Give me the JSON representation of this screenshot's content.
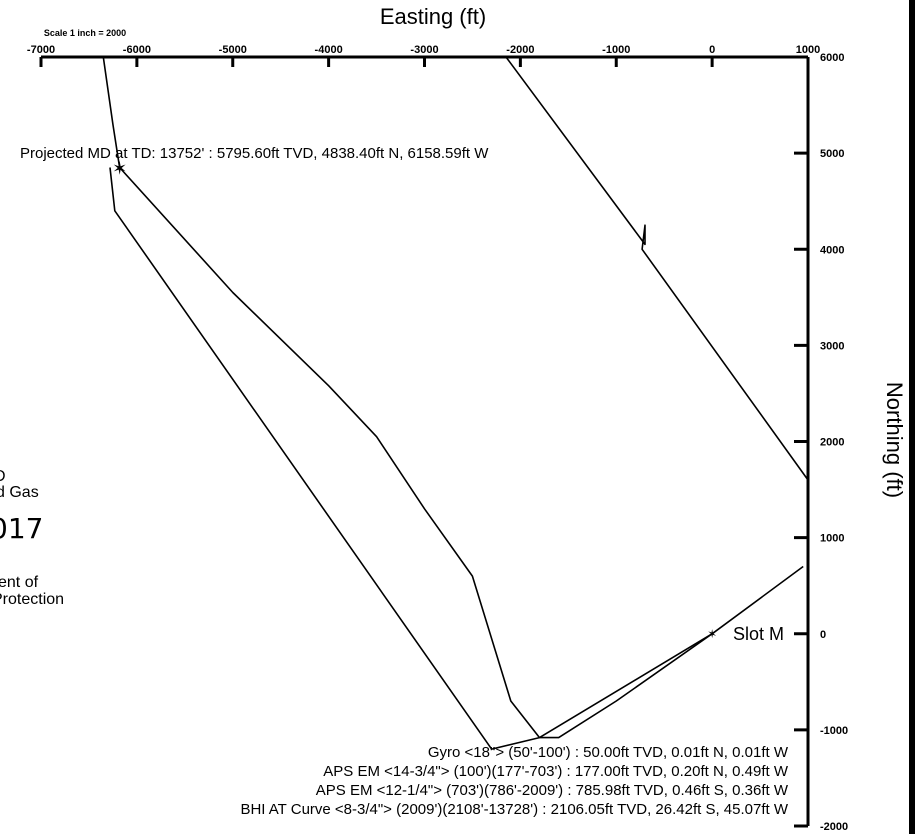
{
  "chart_data": {
    "type": "line",
    "title": "",
    "scale_note": "Scale 1 inch = 2000",
    "xlabel": "Easting (ft)",
    "ylabel": "Northing (ft)",
    "xlim": [
      -7000,
      1000
    ],
    "ylim": [
      -2000,
      6000
    ],
    "x_ticks": [
      -7000,
      -6000,
      -5000,
      -4000,
      -3000,
      -2000,
      -1000,
      0,
      1000
    ],
    "y_ticks": [
      6000,
      5000,
      4000,
      3000,
      2000,
      1000,
      0,
      -1000,
      -2000
    ],
    "grid": false,
    "legend": "none",
    "series": [
      {
        "points": [
          [
            -6350,
            6000
          ],
          [
            -6250,
            5300
          ],
          [
            -6180,
            4850
          ],
          [
            -5000,
            3550
          ],
          [
            -4000,
            2580
          ],
          [
            -3500,
            2050
          ],
          [
            -3000,
            1300
          ],
          [
            -2500,
            600
          ],
          [
            -2100,
            -700
          ],
          [
            -1800,
            -1080
          ],
          [
            -1600,
            -1080
          ],
          [
            -1000,
            -700
          ],
          [
            0,
            0
          ],
          [
            950,
            700
          ]
        ]
      },
      {
        "points": [
          [
            -6280,
            4850
          ],
          [
            -6230,
            4400
          ],
          [
            -2300,
            -1200
          ],
          [
            -1800,
            -1080
          ],
          [
            0,
            0
          ]
        ]
      },
      {
        "points": [
          [
            -2150,
            6000
          ],
          [
            -700,
            4050
          ],
          [
            -700,
            4250
          ],
          [
            -730,
            4000
          ],
          [
            1000,
            1600
          ]
        ]
      }
    ],
    "annotations": {
      "projected": "Projected MD at TD: 13752' : 5795.60ft TVD, 4838.40ft N, 6158.59ft W",
      "slot": "Slot M",
      "surveys": [
        "Gyro <18\"> (50'-100') : 50.00ft TVD, 0.01ft N, 0.01ft W",
        "APS EM <14-3/4\"> (100')(177'-703') : 177.00ft TVD, 0.20ft N, 0.49ft W",
        "APS EM <12-1/4\"> (703')(786'-2009') : 785.98ft TVD, 0.46ft S, 0.36ft W",
        "BHI AT Curve <8-3/4\"> (2009')(2108'-13728') : 2106.05ft TVD, 26.42ft S, 45.07ft W"
      ]
    },
    "stamp_fragments": [
      "D",
      "d Gas",
      "017",
      "ent of",
      "Protection"
    ]
  }
}
